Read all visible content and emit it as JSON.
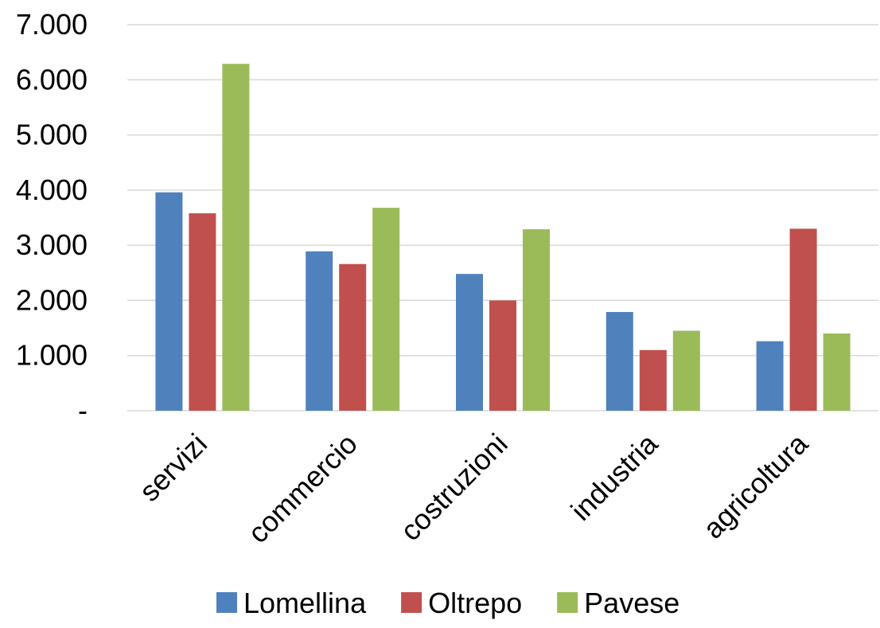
{
  "chart_data": {
    "type": "bar",
    "title": "",
    "xlabel": "",
    "ylabel": "",
    "categories": [
      "servizi",
      "commercio",
      "costruzioni",
      "industria",
      "agricoltura"
    ],
    "series": [
      {
        "name": "Lomellina",
        "color": "#4f81bd",
        "values": [
          3960,
          2890,
          2480,
          1790,
          1260
        ]
      },
      {
        "name": "Oltrepo",
        "color": "#c0504d",
        "values": [
          3580,
          2660,
          2000,
          1100,
          3300
        ]
      },
      {
        "name": "Pavese",
        "color": "#9bbb59",
        "values": [
          6290,
          3680,
          3290,
          1450,
          1400
        ]
      }
    ],
    "ylim": [
      0,
      7000
    ],
    "yticks": [
      0,
      1000,
      2000,
      3000,
      4000,
      5000,
      6000,
      7000
    ],
    "ytick_labels": [
      "-",
      "1.000",
      "2.000",
      "3.000",
      "4.000",
      "5.000",
      "6.000",
      "7.000"
    ],
    "grid": true,
    "legend_position": "bottom"
  }
}
